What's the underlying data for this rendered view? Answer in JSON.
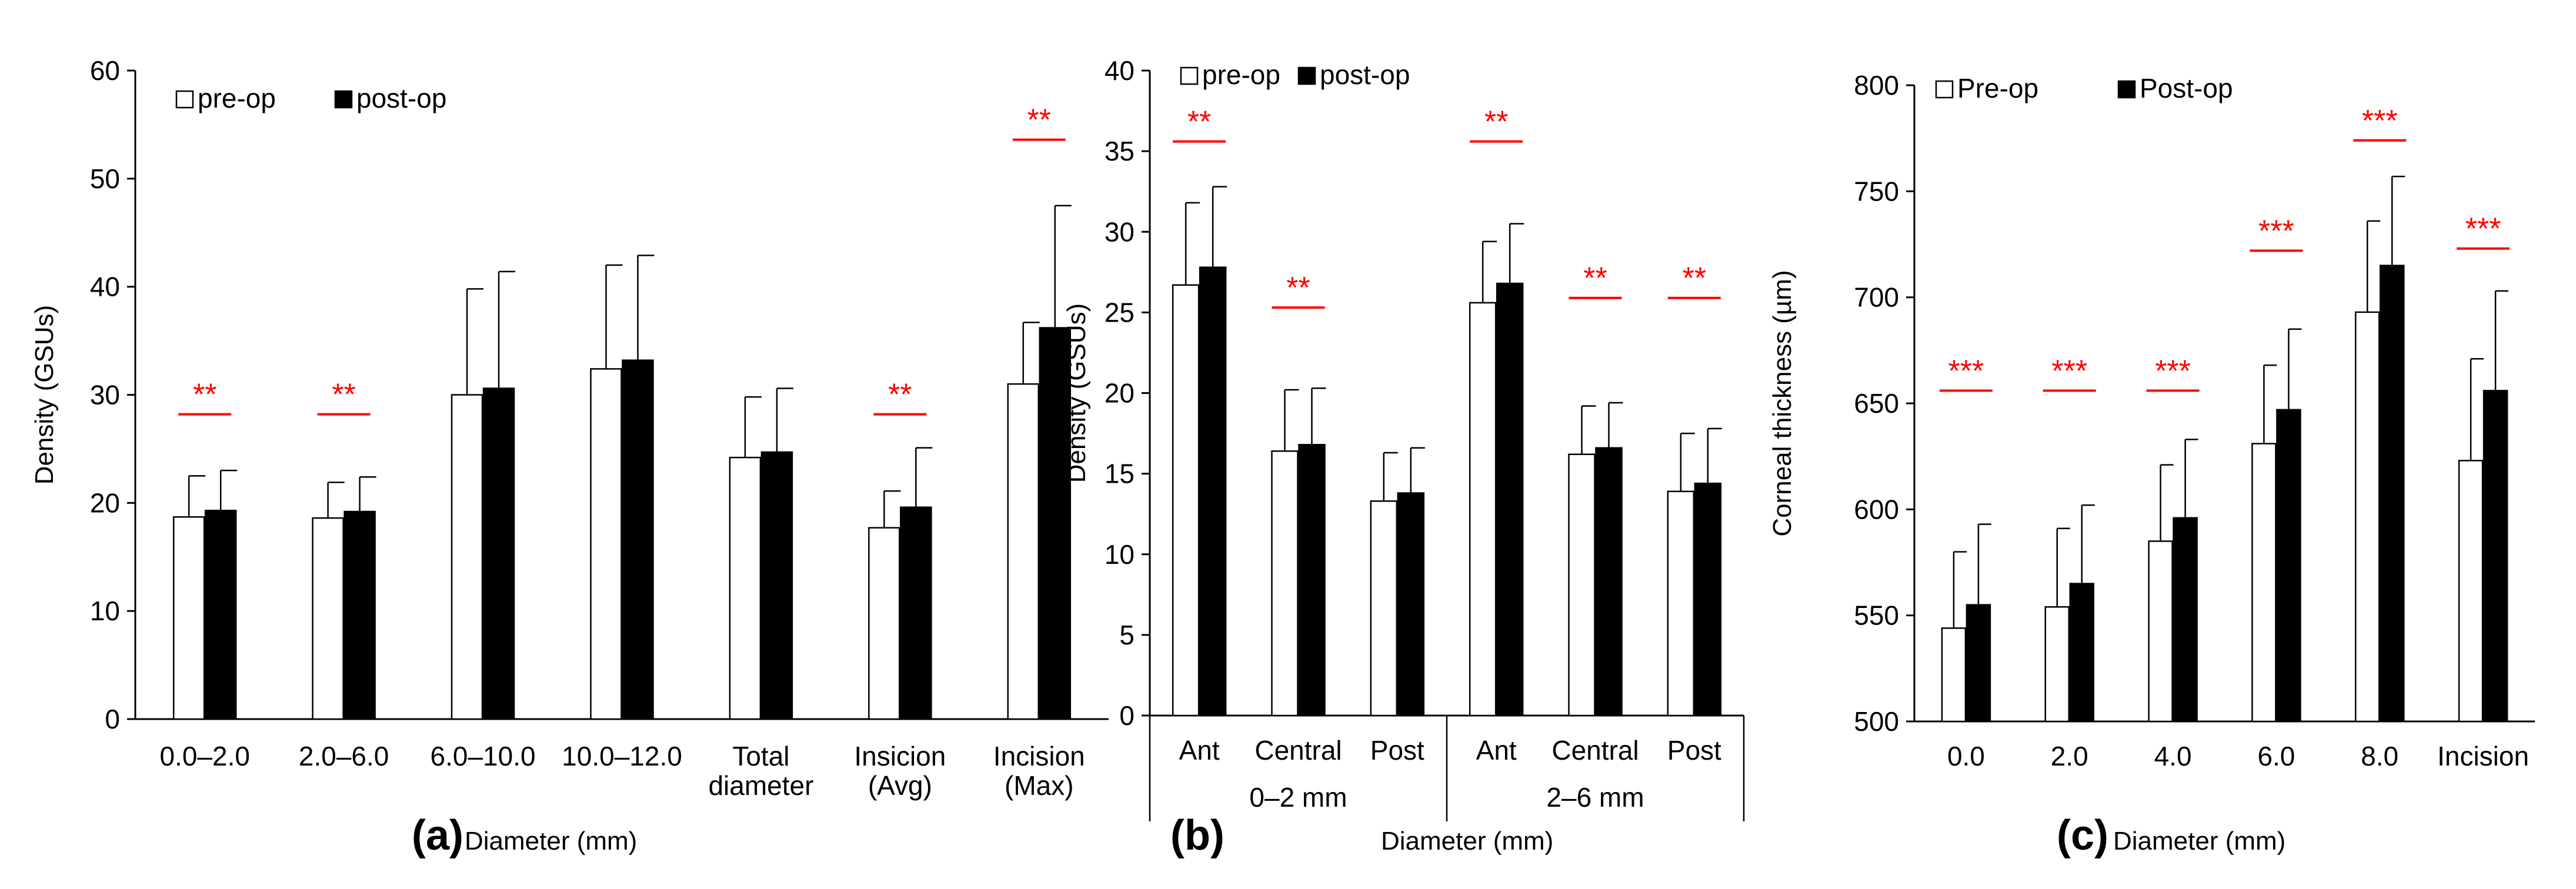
{
  "chart_data": [
    {
      "id": "a",
      "type": "bar",
      "panel_label": "(a)",
      "xlabel": "Diameter (mm)",
      "ylabel": "Density (GSUs)",
      "ylim": [
        0,
        60
      ],
      "yticks": [
        0,
        10,
        20,
        30,
        40,
        50,
        60
      ],
      "legend": {
        "placement": "top-left",
        "entries": [
          "pre-op",
          "post-op"
        ]
      },
      "categories": [
        [
          "0.0–2.0"
        ],
        [
          "2.0–6.0"
        ],
        [
          "6.0–10.0"
        ],
        [
          "10.0–12.0"
        ],
        [
          "Total",
          "diameter"
        ],
        [
          "Insicion",
          "(Avg)"
        ],
        [
          "Incision",
          "(Max)"
        ]
      ],
      "series": [
        {
          "name": "pre-op",
          "color": "#ffffff",
          "values": [
            18.7,
            18.6,
            30.0,
            32.4,
            24.2,
            17.7,
            31.0
          ],
          "errors": [
            3.8,
            3.3,
            9.8,
            9.6,
            5.6,
            3.4,
            5.7
          ]
        },
        {
          "name": "post-op",
          "color": "#000000",
          "values": [
            19.3,
            19.2,
            30.6,
            33.2,
            24.7,
            19.6,
            36.2
          ],
          "errors": [
            3.7,
            3.2,
            10.8,
            9.7,
            5.9,
            5.5,
            11.3
          ]
        }
      ],
      "significance": [
        {
          "index": 0,
          "label": "**",
          "y": 28.2
        },
        {
          "index": 1,
          "label": "**",
          "y": 28.2
        },
        {
          "index": 5,
          "label": "**",
          "y": 28.2
        },
        {
          "index": 6,
          "label": "**",
          "y": 53.6
        }
      ]
    },
    {
      "id": "b",
      "type": "bar",
      "panel_label": "(b)",
      "xlabel": "Diameter (mm)",
      "ylabel": "Density (GSUs)",
      "ylim": [
        0,
        40
      ],
      "yticks": [
        0,
        5,
        10,
        15,
        20,
        25,
        30,
        35,
        40
      ],
      "legend": {
        "placement": "top-left",
        "entries": [
          "pre-op",
          "post-op"
        ]
      },
      "categories": [
        [
          "Ant"
        ],
        [
          "Central"
        ],
        [
          "Post"
        ],
        [
          "Ant"
        ],
        [
          "Central"
        ],
        [
          "Post"
        ]
      ],
      "groups": [
        {
          "label": "0–2 mm",
          "start": 0,
          "end": 2
        },
        {
          "label": "2–6 mm",
          "start": 3,
          "end": 5
        }
      ],
      "series": [
        {
          "name": "pre-op",
          "color": "#ffffff",
          "values": [
            26.7,
            16.4,
            13.3,
            25.6,
            16.2,
            13.9
          ],
          "errors": [
            5.1,
            3.8,
            3.0,
            3.8,
            3.0,
            3.6
          ]
        },
        {
          "name": "post-op",
          "color": "#000000",
          "values": [
            27.8,
            16.8,
            13.8,
            26.8,
            16.6,
            14.4
          ],
          "errors": [
            5.0,
            3.5,
            2.8,
            3.7,
            2.8,
            3.4
          ]
        }
      ],
      "significance": [
        {
          "index": 0,
          "label": "**",
          "y": 35.6
        },
        {
          "index": 1,
          "label": "**",
          "y": 25.3
        },
        {
          "index": 3,
          "label": "**",
          "y": 35.6
        },
        {
          "index": 4,
          "label": "**",
          "y": 25.9
        },
        {
          "index": 5,
          "label": "**",
          "y": 25.9
        }
      ]
    },
    {
      "id": "c",
      "type": "bar",
      "panel_label": "(c)",
      "xlabel": "Diameter (mm)",
      "ylabel": "Corneal thickness (µm)",
      "ylim": [
        500,
        800
      ],
      "yticks": [
        500,
        550,
        600,
        650,
        700,
        750,
        800
      ],
      "legend": {
        "placement": "top-left",
        "entries": [
          "Pre-op",
          "Post-op"
        ]
      },
      "categories": [
        [
          "0.0"
        ],
        [
          "2.0"
        ],
        [
          "4.0"
        ],
        [
          "6.0"
        ],
        [
          "8.0"
        ],
        [
          "Incision"
        ]
      ],
      "series": [
        {
          "name": "Pre-op",
          "color": "#ffffff",
          "values": [
            544,
            554,
            585,
            631,
            693,
            623
          ],
          "errors": [
            36,
            37,
            36,
            37,
            43,
            48
          ]
        },
        {
          "name": "Post-op",
          "color": "#000000",
          "values": [
            555,
            565,
            596,
            647,
            715,
            656
          ],
          "errors": [
            38,
            37,
            37,
            38,
            42,
            47
          ]
        }
      ],
      "significance": [
        {
          "index": 0,
          "label": "***",
          "y": 656
        },
        {
          "index": 1,
          "label": "***",
          "y": 656
        },
        {
          "index": 2,
          "label": "***",
          "y": 656
        },
        {
          "index": 3,
          "label": "***",
          "y": 722
        },
        {
          "index": 4,
          "label": "***",
          "y": 774
        },
        {
          "index": 5,
          "label": "***",
          "y": 723
        }
      ]
    }
  ]
}
